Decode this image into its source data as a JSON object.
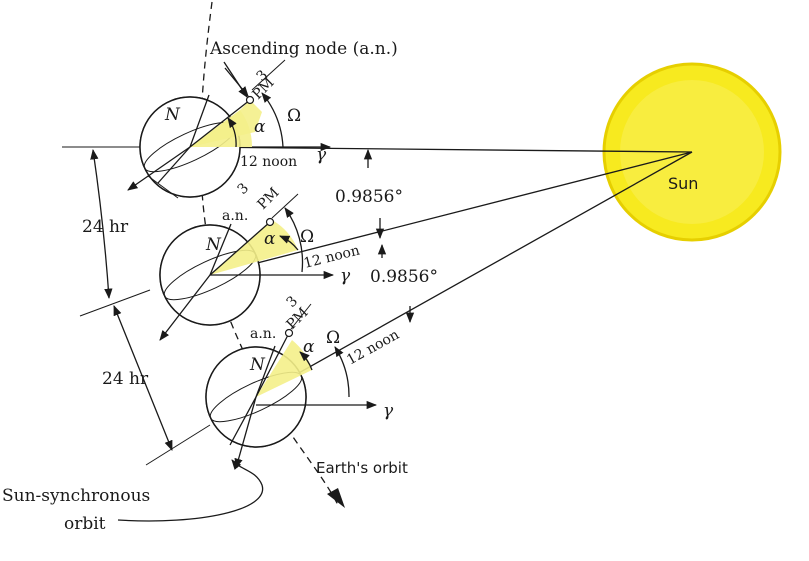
{
  "colors": {
    "sun_fill": "#f7ea1f",
    "sun_stroke": "#e6cf00",
    "highlight": "#f4ef8a",
    "night_side": "#cfcfcf",
    "ink": "#1a1a1a"
  },
  "labels": {
    "ascending_node": "Ascending node (a.n.)",
    "an_short": "a.n.",
    "three": "3",
    "pm": "PM",
    "omega": "Ω",
    "alpha": "α",
    "noon": "12 noon",
    "gamma": "γ",
    "north": "N",
    "sun": "Sun",
    "angle": "0.9856°",
    "day": "24 hr",
    "earth_orbit": "Earth's orbit",
    "sso_line1": "Sun-synchronous",
    "sso_line2": "orbit"
  }
}
